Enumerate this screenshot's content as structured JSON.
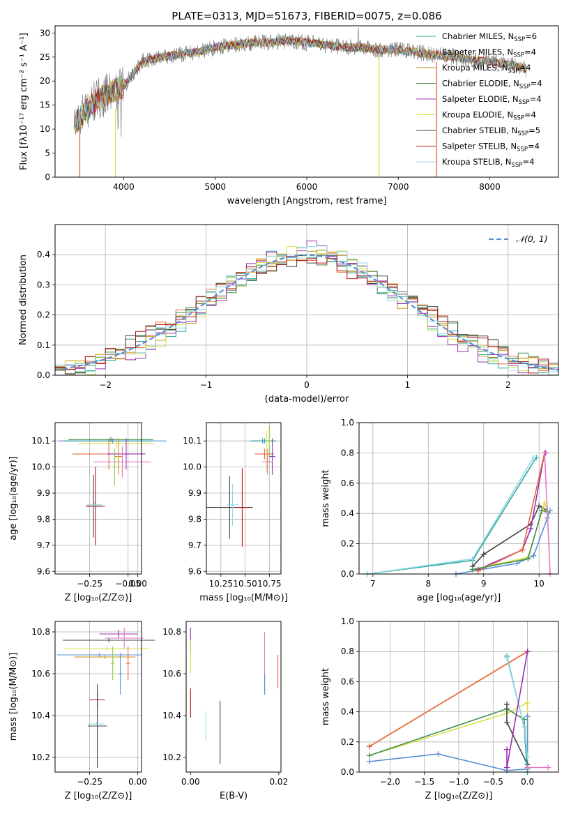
{
  "chart_data": [
    {
      "type": "line",
      "title": "PLATE=0313, MJD=51673, FIBERID=0075, z=0.086",
      "xlabel": "wavelength [Angstrom, rest frame]",
      "ylabel": "Flux [fλ10⁻¹⁷ erg cm⁻² s⁻¹ A⁻¹]",
      "xlim": [
        3250,
        8750
      ],
      "ylim": [
        0,
        31.5
      ],
      "xticks": [
        4000,
        5000,
        6000,
        7000,
        8000
      ],
      "yticks": [
        0,
        5,
        10,
        15,
        20,
        25,
        30
      ],
      "legend_placement": "upper right",
      "spectrum_profile": {
        "wavelength": [
          3460,
          3600,
          3700,
          3800,
          3900,
          4000,
          4200,
          4400,
          4600,
          4800,
          5000,
          5200,
          5400,
          5600,
          5800,
          6000,
          6200,
          6400,
          6600,
          6800,
          7000,
          7200,
          7400,
          7600,
          7800,
          8000,
          8200,
          8400
        ],
        "flux": [
          11,
          14,
          16,
          17,
          18,
          19,
          24,
          25,
          25.5,
          26,
          27,
          27.5,
          28,
          28,
          28.5,
          28,
          27.5,
          27,
          27,
          26.5,
          26.5,
          26,
          25.5,
          25,
          24.5,
          24,
          23.5,
          22.5
        ]
      },
      "series": [
        {
          "name": "Chabrier MILES, N",
          "sub": "SSP",
          "suffix": "=6",
          "color": "#2ca89a"
        },
        {
          "name": "Salpeter MILES, N",
          "sub": "SSP",
          "suffix": "=4",
          "color": "#e8673f"
        },
        {
          "name": "Kroupa MILES, N",
          "sub": "SSP",
          "suffix": "=4",
          "color": "#c79112"
        },
        {
          "name": "Chabrier ELODIE, N",
          "sub": "SSP",
          "suffix": "=4",
          "color": "#3f8f4f"
        },
        {
          "name": "Salpeter ELODIE, N",
          "sub": "SSP",
          "suffix": "=4",
          "color": "#9b2fb5"
        },
        {
          "name": "Kroupa ELODIE, N",
          "sub": "SSP",
          "suffix": "=4",
          "color": "#d8e04a"
        },
        {
          "name": "Chabrier STELIB, N",
          "sub": "SSP",
          "suffix": "=5",
          "color": "#444444"
        },
        {
          "name": "Salpeter STELIB, N",
          "sub": "SSP",
          "suffix": "=4",
          "color": "#b01515"
        },
        {
          "name": "Kroupa STELIB, N",
          "sub": "SSP",
          "suffix": "=4",
          "color": "#8fd8e8"
        }
      ],
      "vertical_lines": [
        {
          "x": 3520,
          "color": "#e8673f",
          "y0": 0,
          "y1": 10
        },
        {
          "x": 3910,
          "color": "#d8e04a",
          "y0": 0,
          "y1": 14
        },
        {
          "x": 6790,
          "color": "#d8e04a",
          "y0": 0,
          "y1": 25
        },
        {
          "x": 7420,
          "color": "#e8673f",
          "y0": 0,
          "y1": 24
        }
      ]
    },
    {
      "type": "bar",
      "xlabel": "(data-model)/error",
      "ylabel": "Normed distribution",
      "xlim": [
        -2.5,
        2.5
      ],
      "ylim": [
        0,
        0.5
      ],
      "xticks": [
        -2,
        -1,
        0,
        1,
        2
      ],
      "yticks": [
        0.0,
        0.1,
        0.2,
        0.3,
        0.4
      ],
      "grid": true,
      "legend_placement": "upper right",
      "normal_curve": {
        "label": "𝒩(0, 1)",
        "color": "#5b8fd6",
        "mean": 0,
        "sd": 1
      },
      "bin_edges": [
        -2.5,
        2.5
      ],
      "bin_width": 0.1,
      "histograms": [
        {
          "color": "#2ca89a",
          "offset": 0.012
        },
        {
          "color": "#e8673f",
          "offset": -0.01
        },
        {
          "color": "#c79112",
          "offset": 0.008
        },
        {
          "color": "#3f8f4f",
          "offset": -0.015
        },
        {
          "color": "#9b2fb5",
          "offset": 0.018
        },
        {
          "color": "#d8e04a",
          "offset": 0.02
        },
        {
          "color": "#444444",
          "offset": -0.02
        },
        {
          "color": "#b01515",
          "offset": -0.018
        },
        {
          "color": "#8fd8e8",
          "offset": 0.01
        }
      ]
    },
    {
      "type": "scatter",
      "xlabel": "Z [log₁₀(Z/Z⊙)]",
      "ylabel": "age  [log₁₀(age/yr)]",
      "xlim": [
        -0.43,
        0.02
      ],
      "ylim": [
        9.59,
        10.17
      ],
      "xticks": [
        -0.25,
        -0.05,
        0.0
      ],
      "xticklabels": [
        "−0.25",
        "−0.05",
        "0.00"
      ],
      "yticks": [
        9.6,
        9.7,
        9.8,
        9.9,
        10.0,
        10.1
      ],
      "grid": true,
      "points": [
        {
          "x": -0.13,
          "y": 10.1,
          "xerr": 0.28,
          "yerr": 0.01,
          "color": "#5b8fd6"
        },
        {
          "x": -0.15,
          "y": 10.1,
          "xerr": 0.23,
          "yerr": 0.01,
          "color": "#2ca89a"
        },
        {
          "x": -0.11,
          "y": 10.09,
          "xerr": 0.2,
          "yerr": 0.02,
          "color": "#d8e04a"
        },
        {
          "x": -0.14,
          "y": 10.105,
          "xerr": 0.22,
          "yerr": 0.01,
          "color": "#3f8f4f"
        },
        {
          "x": -0.15,
          "y": 10.05,
          "xerr": 0.19,
          "yerr": 0.06,
          "color": "#e8673f"
        },
        {
          "x": -0.06,
          "y": 10.05,
          "xerr": 0.1,
          "yerr": 0.06,
          "color": "#9b2fb5"
        },
        {
          "x": -0.08,
          "y": 10.02,
          "xerr": 0.15,
          "yerr": 0.06,
          "color": "#e377c2"
        },
        {
          "x": -0.1,
          "y": 10.04,
          "xerr": 0.02,
          "yerr": 0.07,
          "color": "#c79112"
        },
        {
          "x": -0.12,
          "y": 10.0,
          "xerr": 0.01,
          "yerr": 0.07,
          "color": "#8fce3f"
        },
        {
          "x": -0.23,
          "y": 9.85,
          "xerr": 0.04,
          "yerr": 0.12,
          "color": "#444444"
        },
        {
          "x": -0.22,
          "y": 9.85,
          "xerr": 0.05,
          "yerr": 0.15,
          "color": "#b01515"
        },
        {
          "x": -0.225,
          "y": 9.855,
          "xerr": 0.04,
          "yerr": 0.01,
          "color": "#8fd8e8"
        }
      ]
    },
    {
      "type": "scatter",
      "xlabel": "mass [log₁₀(M/M⊙)]",
      "ylabel": "",
      "xlim": [
        10.1,
        10.87
      ],
      "ylim": [
        9.59,
        10.17
      ],
      "xticks": [
        10.25,
        10.5,
        10.75
      ],
      "xticklabels": [
        "10.25",
        "10.50",
        "10.75"
      ],
      "yticks": [
        9.6,
        9.7,
        9.8,
        9.9,
        10.0,
        10.1
      ],
      "grid": true,
      "points": [
        {
          "x": 10.68,
          "y": 10.1,
          "xerr": 0.13,
          "yerr": 0.01,
          "color": "#5b8fd6"
        },
        {
          "x": 10.7,
          "y": 10.1,
          "xerr": 0.12,
          "yerr": 0.01,
          "color": "#2ca89a"
        },
        {
          "x": 10.75,
          "y": 10.1,
          "xerr": 0.02,
          "yerr": 0.06,
          "color": "#8fce3f"
        },
        {
          "x": 10.7,
          "y": 10.05,
          "xerr": 0.1,
          "yerr": 0.02,
          "color": "#e8673f"
        },
        {
          "x": 10.78,
          "y": 10.04,
          "xerr": 0.03,
          "yerr": 0.07,
          "color": "#9b2fb5"
        },
        {
          "x": 10.73,
          "y": 10.02,
          "xerr": 0.05,
          "yerr": 0.05,
          "color": "#e377c2"
        },
        {
          "x": 10.72,
          "y": 10.06,
          "xerr": 0.01,
          "yerr": 0.08,
          "color": "#d8e04a"
        },
        {
          "x": 10.34,
          "y": 9.845,
          "xerr": 0.24,
          "yerr": 0.12,
          "color": "#444444"
        },
        {
          "x": 10.47,
          "y": 9.845,
          "xerr": 0.07,
          "yerr": 0.15,
          "color": "#b01515"
        },
        {
          "x": 10.37,
          "y": 9.855,
          "xerr": 0.06,
          "yerr": 0.08,
          "color": "#8fd8e8"
        }
      ]
    },
    {
      "type": "line",
      "xlabel": "age  [log₁₀(age/yr)]",
      "ylabel": "mass weight",
      "xlim": [
        6.75,
        10.35
      ],
      "ylim": [
        0,
        1.0
      ],
      "xticks": [
        7,
        8,
        9,
        10
      ],
      "yticks": [
        0.0,
        0.2,
        0.4,
        0.6,
        0.8,
        1.0
      ],
      "grid": true,
      "series": [
        {
          "color": "#2ca89a",
          "x": [
            6.9,
            8.8,
            9.95
          ],
          "y": [
            0.0,
            0.09,
            0.77
          ]
        },
        {
          "color": "#8fd8e8",
          "x": [
            6.9,
            8.8,
            9.9
          ],
          "y": [
            0.0,
            0.1,
            0.77
          ]
        },
        {
          "color": "#5b8fd6",
          "x": [
            8.5,
            9.6,
            9.9,
            10.15,
            10.2
          ],
          "y": [
            0.0,
            0.07,
            0.12,
            0.37,
            0.42
          ]
        },
        {
          "color": "#444444",
          "x": [
            8.8,
            9.0,
            9.85,
            10.0,
            10.15
          ],
          "y": [
            0.05,
            0.13,
            0.33,
            0.45,
            0.42
          ]
        },
        {
          "color": "#9b2fb5",
          "x": [
            8.9,
            9.7,
            9.85,
            10.1,
            10.12
          ],
          "y": [
            0.03,
            0.16,
            0.3,
            0.8,
            0.8
          ]
        },
        {
          "color": "#e8673f",
          "x": [
            8.9,
            9.7,
            10.1
          ],
          "y": [
            0.02,
            0.16,
            0.8
          ]
        },
        {
          "color": "#d8e04a",
          "x": [
            8.8,
            9.8,
            10.1,
            10.15
          ],
          "y": [
            0.03,
            0.11,
            0.47,
            0.42
          ]
        },
        {
          "color": "#3f8f4f",
          "x": [
            8.8,
            9.8,
            10.05,
            10.15
          ],
          "y": [
            0.03,
            0.1,
            0.42,
            0.41
          ]
        },
        {
          "color": "#e377c2",
          "x": [
            10.1,
            10.2
          ],
          "y": [
            0.8,
            0.0
          ]
        }
      ]
    },
    {
      "type": "scatter",
      "xlabel": "Z [log₁₀(Z/Z⊙)]",
      "ylabel": "mass [log₁₀(M/M⊙)]",
      "xlim": [
        -0.43,
        0.02
      ],
      "ylim": [
        10.13,
        10.85
      ],
      "xticks": [
        -0.25,
        0.0
      ],
      "xticklabels": [
        "−0.25",
        "0.00"
      ],
      "yticks": [
        10.2,
        10.4,
        10.6,
        10.8
      ],
      "grid": true,
      "points": [
        {
          "x": -0.15,
          "y": 10.76,
          "xerr": 0.24,
          "yerr": 0.01,
          "color": "#444444"
        },
        {
          "x": -0.1,
          "y": 10.79,
          "xerr": 0.1,
          "yerr": 0.02,
          "color": "#9b2fb5"
        },
        {
          "x": -0.07,
          "y": 10.77,
          "xerr": 0.1,
          "yerr": 0.05,
          "color": "#e377c2"
        },
        {
          "x": -0.16,
          "y": 10.72,
          "xerr": 0.22,
          "yerr": 0.01,
          "color": "#d8e04a"
        },
        {
          "x": -0.2,
          "y": 10.69,
          "xerr": 0.22,
          "yerr": 0.01,
          "color": "#5b8fd6"
        },
        {
          "x": -0.17,
          "y": 10.68,
          "xerr": 0.16,
          "yerr": 0.01,
          "color": "#c79112"
        },
        {
          "x": -0.13,
          "y": 10.65,
          "xerr": 0.01,
          "yerr": 0.08,
          "color": "#8fce3f"
        },
        {
          "x": -0.09,
          "y": 10.6,
          "xerr": 0.01,
          "yerr": 0.1,
          "color": "#5b8fd6"
        },
        {
          "x": -0.05,
          "y": 10.65,
          "xerr": 0.01,
          "yerr": 0.08,
          "color": "#e8673f"
        },
        {
          "x": -0.21,
          "y": 10.475,
          "xerr": 0.04,
          "yerr": 0.04,
          "color": "#b01515"
        },
        {
          "x": -0.21,
          "y": 10.35,
          "xerr": 0.05,
          "yerr": 0.2,
          "color": "#444444"
        },
        {
          "x": -0.215,
          "y": 10.36,
          "xerr": 0.04,
          "yerr": 0.01,
          "color": "#8fd8e8"
        }
      ]
    },
    {
      "type": "scatter",
      "xlabel": "E(B-V)",
      "ylabel": "",
      "xlim": [
        -0.001,
        0.0205
      ],
      "ylim": [
        10.13,
        10.85
      ],
      "xticks": [
        0.0,
        0.02
      ],
      "xticklabels": [
        "0.00",
        "0.02"
      ],
      "yticks": [
        10.2,
        10.4,
        10.6,
        10.8
      ],
      "grid": false,
      "points": [
        {
          "x": 0.0,
          "y": 10.76,
          "xerr": 0,
          "yerr": 0.06,
          "color": "#9b2fb5"
        },
        {
          "x": 0.0,
          "y": 10.68,
          "xerr": 0,
          "yerr": 0.08,
          "color": "#d8e04a"
        },
        {
          "x": 0.0,
          "y": 10.46,
          "xerr": 0,
          "yerr": 0.07,
          "color": "#b01515"
        },
        {
          "x": 0.0035,
          "y": 10.35,
          "xerr": 0,
          "yerr": 0.07,
          "color": "#8fd8e8"
        },
        {
          "x": 0.0067,
          "y": 10.32,
          "xerr": 0,
          "yerr": 0.15,
          "color": "#444444"
        },
        {
          "x": 0.0168,
          "y": 10.65,
          "xerr": 0,
          "yerr": 0.15,
          "color": "#e377c2"
        },
        {
          "x": 0.0168,
          "y": 10.55,
          "xerr": 0,
          "yerr": 0.05,
          "color": "#5b8fd6"
        },
        {
          "x": 0.0198,
          "y": 10.61,
          "xerr": 0,
          "yerr": 0.08,
          "color": "#e8673f"
        }
      ]
    },
    {
      "type": "line",
      "xlabel": "Z [log₁₀(Z/Z⊙)]",
      "ylabel": "mass weight",
      "xlim": [
        -2.45,
        0.45
      ],
      "ylim": [
        0,
        1.0
      ],
      "xticks": [
        -2.0,
        -1.5,
        -1.0,
        -0.5,
        0.0
      ],
      "xticklabels": [
        "−2.0",
        "−1.5",
        "−1.0",
        "−0.5",
        "0.0"
      ],
      "yticks": [
        0.0,
        0.2,
        0.4,
        0.6,
        0.8,
        1.0
      ],
      "grid": true,
      "series": [
        {
          "color": "#c79112",
          "x": [
            -2.3,
            0.0
          ],
          "y": [
            0.17,
            0.8
          ]
        },
        {
          "color": "#e8673f",
          "x": [
            -2.3,
            0.0
          ],
          "y": [
            0.17,
            0.8
          ]
        },
        {
          "color": "#d8e04a",
          "x": [
            -2.3,
            -0.3,
            0.0,
            0.0
          ],
          "y": [
            0.11,
            0.39,
            0.46,
            0.03
          ]
        },
        {
          "color": "#3f8f4f",
          "x": [
            -2.3,
            -0.3,
            -0.05,
            0.0
          ],
          "y": [
            0.11,
            0.42,
            0.35,
            0.03
          ]
        },
        {
          "color": "#5b8fd6",
          "x": [
            -2.3,
            -1.3,
            -0.3,
            0.0,
            0.0
          ],
          "y": [
            0.07,
            0.12,
            0.01,
            0.02,
            0.37
          ]
        },
        {
          "color": "#444444",
          "x": [
            -0.3,
            -0.3,
            0.0
          ],
          "y": [
            0.45,
            0.33,
            0.05
          ]
        },
        {
          "color": "#2ca89a",
          "x": [
            -0.3,
            -0.05,
            0.0
          ],
          "y": [
            0.77,
            0.3,
            0.0
          ]
        },
        {
          "color": "#8fd8e8",
          "x": [
            -0.3,
            -0.05,
            0.0
          ],
          "y": [
            0.76,
            0.3,
            0.1
          ]
        },
        {
          "color": "#9b2fb5",
          "x": [
            -0.3,
            -0.3,
            0.0,
            0.0,
            -0.3
          ],
          "y": [
            0.15,
            0.03,
            0.8,
            0.8,
            0.03
          ]
        },
        {
          "color": "#e377c2",
          "x": [
            0.0,
            0.3
          ],
          "y": [
            0.03,
            0.03
          ]
        }
      ]
    }
  ]
}
